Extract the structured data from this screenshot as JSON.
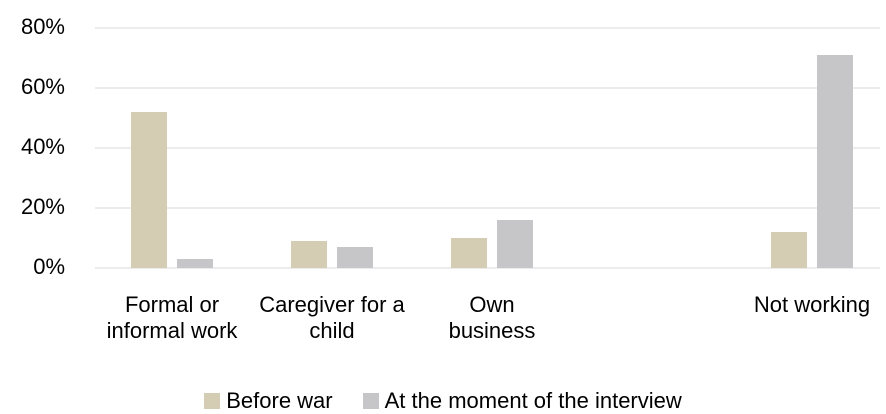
{
  "chart_data": {
    "type": "bar",
    "categories": [
      "Formal or informal work",
      "Caregiver for a child",
      "Own business",
      null,
      "Not working"
    ],
    "series": [
      {
        "name": "Before war",
        "color": "#d5ccb4",
        "values": [
          52,
          9,
          10,
          null,
          12
        ]
      },
      {
        "name": "At the moment of the interview",
        "color": "#c6c6c9",
        "values": [
          3,
          7,
          16,
          null,
          71
        ]
      }
    ],
    "ylim": [
      0,
      80
    ],
    "yticks": [
      {
        "value": 0,
        "label": "0%"
      },
      {
        "value": 20,
        "label": "20%"
      },
      {
        "value": 40,
        "label": "40%"
      },
      {
        "value": 60,
        "label": "60%"
      },
      {
        "value": 80,
        "label": "80%"
      }
    ],
    "grid": true
  }
}
